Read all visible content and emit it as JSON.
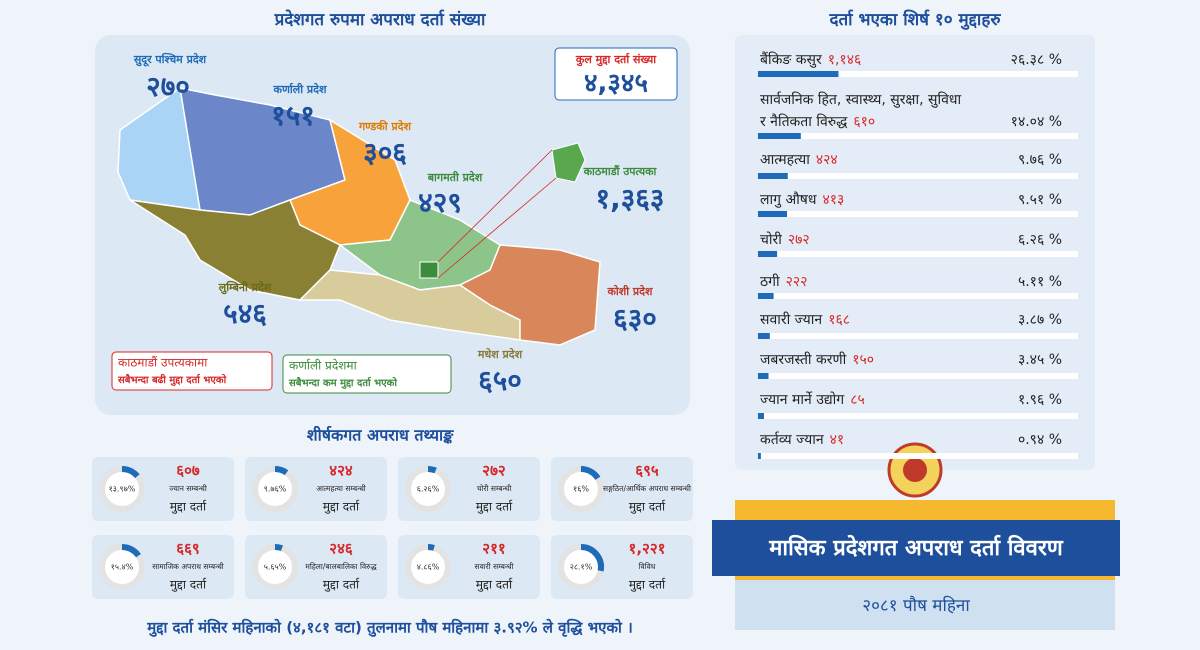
{
  "map": {
    "title": "प्रदेशगत रुपमा अपराध दर्ता संख्या",
    "total": {
      "label": "कुल मुद्दा दर्ता संख्या",
      "value": "४,३४५"
    },
    "provinces": [
      {
        "name": "सुदूर पश्चिम प्रदेश",
        "value": "२७०"
      },
      {
        "name": "कर्णाली प्रदेश",
        "value": "१५१"
      },
      {
        "name": "गण्डकी प्रदेश",
        "value": "३०६"
      },
      {
        "name": "बागमती प्रदेश",
        "value": "४२९"
      },
      {
        "name": "काठमाडौं उपत्यका",
        "value": "१,३६३"
      },
      {
        "name": "लुम्बिनी प्रदेश",
        "value": "५४६"
      },
      {
        "name": "कोशी प्रदेश",
        "value": "६३०"
      },
      {
        "name": "मधेश प्रदेश",
        "value": "६५०"
      }
    ],
    "notes": [
      {
        "title": "काठमाडौं उपत्यकामा",
        "text": "सबैभन्दा बढी मुद्दा दर्ता भएको"
      },
      {
        "title": "कर्णाली प्रदेशमा",
        "text": "सबैभन्दा कम मुद्दा दर्ता भएको"
      }
    ]
  },
  "categories": {
    "title": "शीर्षकगत अपराध तथ्याङ्क",
    "items": [
      {
        "percent": "१३.९७%",
        "count": "६०७",
        "label": "ज्यान सम्बन्धी",
        "sub": "मुद्दा दर्ता"
      },
      {
        "percent": "९.७६%",
        "count": "४२४",
        "label": "आत्महत्या सम्बन्धी",
        "sub": "मुद्दा दर्ता"
      },
      {
        "percent": "६.२६%",
        "count": "२७२",
        "label": "चोरी सम्बन्धी",
        "sub": "मुद्दा दर्ता"
      },
      {
        "percent": "१६%",
        "count": "६९५",
        "label": "सङ्गठित/आर्थिक अपराध सम्बन्धी",
        "sub": "मुद्दा दर्ता"
      },
      {
        "percent": "१५.४%",
        "count": "६६९",
        "label": "सामाजिक अपराध सम्बन्धी",
        "sub": "मुद्दा दर्ता"
      },
      {
        "percent": "५.६५%",
        "count": "२४६",
        "label": "महिला/बालबालिका विरुद्ध",
        "sub": "मुद्दा दर्ता"
      },
      {
        "percent": "४.८६%",
        "count": "२११",
        "label": "सवारी सम्बन्धी",
        "sub": "मुद्दा दर्ता"
      },
      {
        "percent": "२८.१%",
        "count": "१,२२१",
        "label": "विविध",
        "sub": "मुद्दा दर्ता"
      }
    ]
  },
  "top10": {
    "title": "दर्ता भएका शिर्ष १० मुद्दाहरु",
    "items": [
      {
        "name": [
          "बैंकिङ कसुर"
        ],
        "count": "१,१४६",
        "percent": "२६.३८ %"
      },
      {
        "name": [
          "सार्वजनिक हित, स्वास्थ्य, सुरक्षा, सुविधा",
          "र नैतिकता विरुद्ध"
        ],
        "count": "६१०",
        "percent": "१४.०४ %"
      },
      {
        "name": [
          "आत्महत्या"
        ],
        "count": "४२४",
        "percent": "९.७६ %"
      },
      {
        "name": [
          "लागु औषध"
        ],
        "count": "४१३",
        "percent": "९.५१ %"
      },
      {
        "name": [
          "चोरी"
        ],
        "count": "२७२",
        "percent": "६.२६ %"
      },
      {
        "name": [
          "ठगी"
        ],
        "count": "२२२",
        "percent": "५.११ %"
      },
      {
        "name": [
          "सवारी ज्यान"
        ],
        "count": "१६८",
        "percent": "३.८७ %"
      },
      {
        "name": [
          "जबरजस्ती करणी"
        ],
        "count": "१५०",
        "percent": "३.४५ %"
      },
      {
        "name": [
          "ज्यान मार्ने उद्योग"
        ],
        "count": "८५",
        "percent": "१.९६ %"
      },
      {
        "name": [
          "कर्तव्य ज्यान"
        ],
        "count": "४१",
        "percent": "०.९४ %"
      }
    ]
  },
  "banner": {
    "title": "मासिक प्रदेशगत अपराध दर्ता विवरण",
    "subtitle": "२०८१ पौष महिना"
  },
  "footer": "मुद्दा दर्ता मंसिर महिनाको (४,१८१ वटा) तुलनामा पौष महिनामा ३.९२% ले वृद्धि भएको ।"
}
